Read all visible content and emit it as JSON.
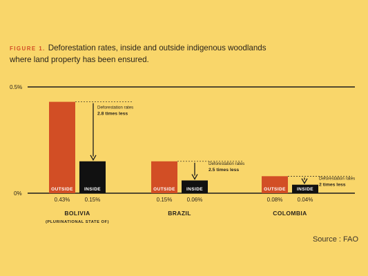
{
  "figure_label": "FIGURE 1.",
  "title_line1": "Deforestation rates, inside and outside indigenous woodlands",
  "title_line2": "where land property has been ensured.",
  "source": "Source : FAO",
  "colors": {
    "background": "#F9D66A",
    "outside": "#D24E25",
    "inside": "#111111",
    "text": "#2a241c"
  },
  "chart_data": {
    "type": "bar",
    "title": "Deforestation rates, inside and outside indigenous woodlands where land property has been ensured.",
    "y_ticks": [
      "0.5%",
      "0%"
    ],
    "ylim": [
      0,
      0.5
    ],
    "series_labels": [
      "OUTSIDE",
      "INSIDE"
    ],
    "groups": [
      {
        "name": "BOLIVIA",
        "subname": "(PLURINATIONAL STATE OF)",
        "outside": 0.43,
        "inside": 0.15,
        "outside_label": "0.43%",
        "inside_label": "0.15%",
        "annotation_line1": "Deforestation rates",
        "annotation_line2": "2.8 times less"
      },
      {
        "name": "BRAZIL",
        "subname": "",
        "outside": 0.15,
        "inside": 0.06,
        "outside_label": "0.15%",
        "inside_label": "0.06%",
        "annotation_line1": "Deforestation rates",
        "annotation_line2": "2.5 times less"
      },
      {
        "name": "COLOMBIA",
        "subname": "",
        "outside": 0.08,
        "inside": 0.04,
        "outside_label": "0.08%",
        "inside_label": "0.04%",
        "annotation_line1": "Deforestation rates",
        "annotation_line2": "2 times less"
      }
    ]
  }
}
